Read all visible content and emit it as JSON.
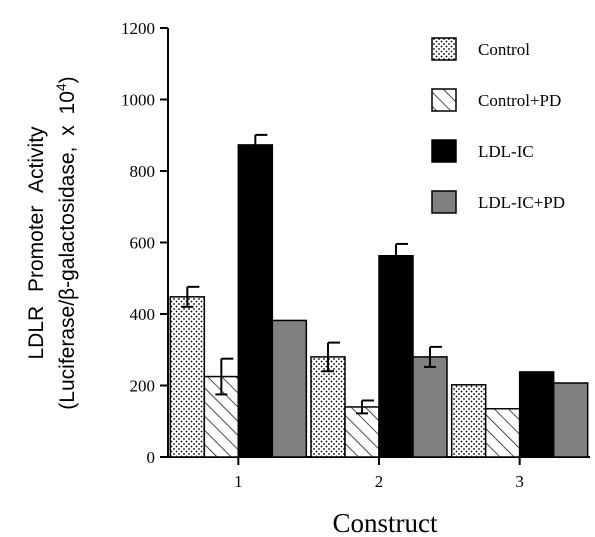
{
  "chart_data": {
    "type": "bar",
    "categories": [
      "1",
      "2",
      "3"
    ],
    "series": [
      {
        "name": "Control",
        "values": [
          448,
          280,
          202
        ],
        "errors": [
          28,
          40,
          null
        ],
        "pattern": "dots",
        "color": "#ffffff"
      },
      {
        "name": "Control+PD",
        "values": [
          225,
          140,
          135
        ],
        "errors": [
          50,
          18,
          null
        ],
        "pattern": "hatch",
        "color": "#ffffff"
      },
      {
        "name": "LDL-IC",
        "values": [
          873,
          563,
          238
        ],
        "errors": [
          28,
          33,
          null
        ],
        "pattern": "solid",
        "color": "#000000"
      },
      {
        "name": "LDL-IC+PD",
        "values": [
          382,
          280,
          207
        ],
        "errors": [
          null,
          28,
          null
        ],
        "pattern": "solid",
        "color": "#808080"
      }
    ],
    "ylim": [
      0,
      1200
    ],
    "yticks": [
      "0",
      "200",
      "400",
      "600",
      "800",
      "1000",
      "1200"
    ],
    "xlabel": "Construct",
    "ylabel_line1": "LDLR Promoter Activity",
    "ylabel_line2": "(Luciferase/β-galactosidase, x 10",
    "ylabel_sup": "4",
    "ylabel_close": ")",
    "grid": false,
    "legend": "top-right"
  }
}
